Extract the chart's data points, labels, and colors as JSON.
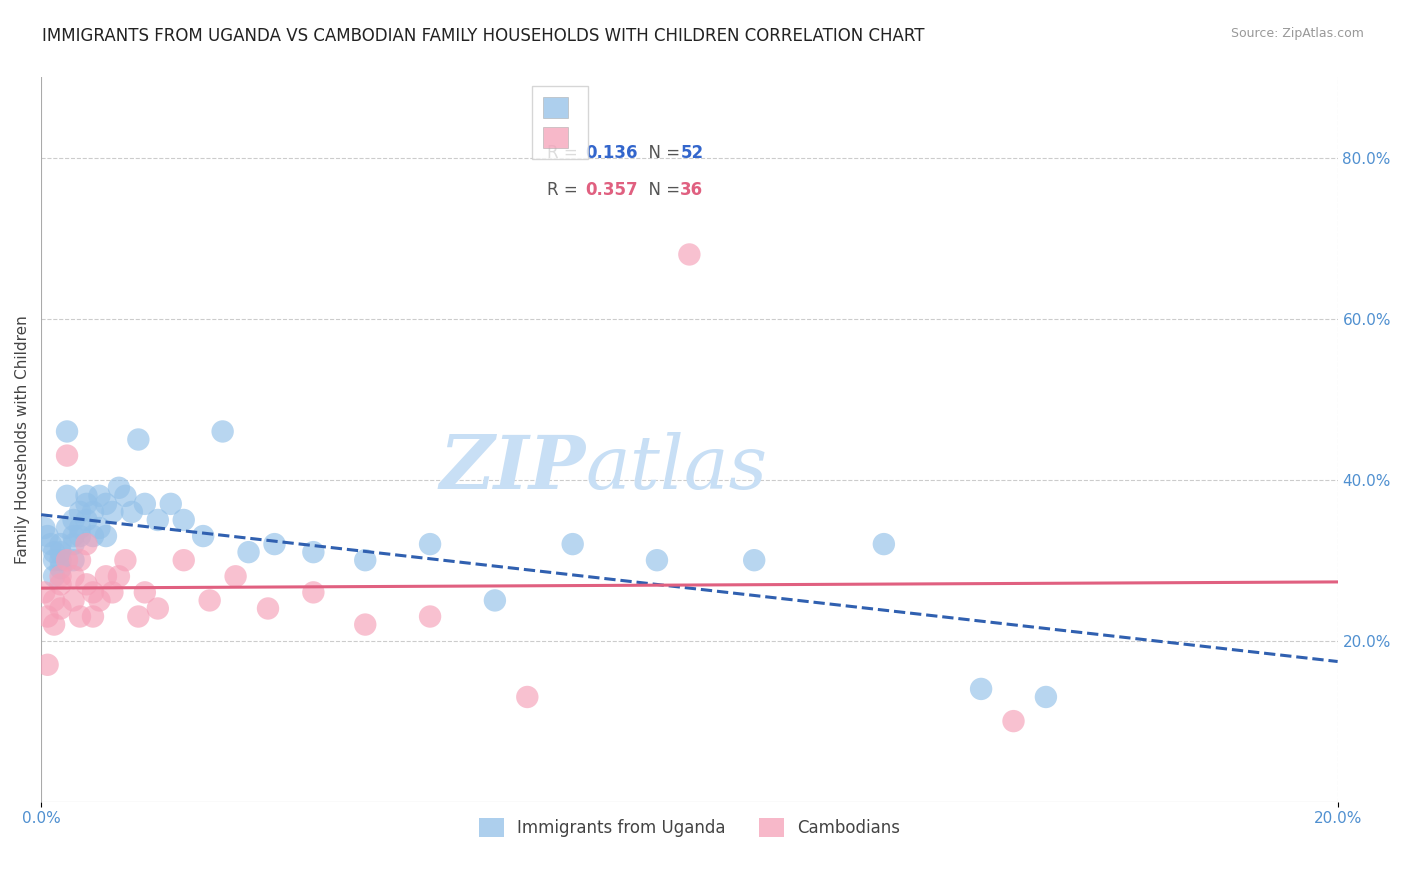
{
  "title": "IMMIGRANTS FROM UGANDA VS CAMBODIAN FAMILY HOUSEHOLDS WITH CHILDREN CORRELATION CHART",
  "source": "Source: ZipAtlas.com",
  "ylabel": "Family Households with Children",
  "ytick_labels": [
    "80.0%",
    "60.0%",
    "40.0%",
    "20.0%"
  ],
  "ytick_values": [
    0.8,
    0.6,
    0.4,
    0.2
  ],
  "xlim": [
    0.0,
    0.2
  ],
  "ylim": [
    0.0,
    0.9
  ],
  "legend_bottom": [
    "Immigrants from Uganda",
    "Cambodians"
  ],
  "uganda_color": "#92c0e8",
  "cambodian_color": "#f5a0b8",
  "uganda_line_color": "#3060b0",
  "cambodian_line_color": "#e06080",
  "background_color": "#ffffff",
  "watermark_zip": "ZIP",
  "watermark_atlas": "atlas",
  "watermark_color_zip": "#c8dff5",
  "watermark_color_atlas": "#c8dff5",
  "legend_R1": "R = ",
  "legend_V1": "0.136",
  "legend_N1_label": "N = ",
  "legend_V1N": "52",
  "legend_R2": "R = ",
  "legend_V2": "0.357",
  "legend_N2_label": "N = ",
  "legend_V2N": "36",
  "uganda_scatter_x": [
    0.0005,
    0.001,
    0.0015,
    0.002,
    0.002,
    0.002,
    0.003,
    0.003,
    0.003,
    0.003,
    0.004,
    0.004,
    0.004,
    0.005,
    0.005,
    0.005,
    0.005,
    0.006,
    0.006,
    0.006,
    0.007,
    0.007,
    0.007,
    0.008,
    0.008,
    0.009,
    0.009,
    0.01,
    0.01,
    0.011,
    0.012,
    0.013,
    0.014,
    0.015,
    0.016,
    0.018,
    0.02,
    0.022,
    0.025,
    0.028,
    0.032,
    0.036,
    0.042,
    0.05,
    0.06,
    0.07,
    0.082,
    0.095,
    0.11,
    0.13,
    0.145,
    0.155
  ],
  "uganda_scatter_y": [
    0.34,
    0.33,
    0.32,
    0.3,
    0.28,
    0.31,
    0.3,
    0.29,
    0.32,
    0.31,
    0.46,
    0.38,
    0.34,
    0.33,
    0.35,
    0.32,
    0.3,
    0.36,
    0.34,
    0.33,
    0.38,
    0.37,
    0.35,
    0.36,
    0.33,
    0.38,
    0.34,
    0.37,
    0.33,
    0.36,
    0.39,
    0.38,
    0.36,
    0.45,
    0.37,
    0.35,
    0.37,
    0.35,
    0.33,
    0.46,
    0.31,
    0.32,
    0.31,
    0.3,
    0.32,
    0.25,
    0.32,
    0.3,
    0.3,
    0.32,
    0.14,
    0.13
  ],
  "cambodian_scatter_x": [
    0.0005,
    0.001,
    0.001,
    0.002,
    0.002,
    0.003,
    0.003,
    0.003,
    0.004,
    0.004,
    0.005,
    0.005,
    0.006,
    0.006,
    0.007,
    0.007,
    0.008,
    0.008,
    0.009,
    0.01,
    0.011,
    0.012,
    0.013,
    0.015,
    0.016,
    0.018,
    0.022,
    0.026,
    0.03,
    0.035,
    0.042,
    0.05,
    0.06,
    0.075,
    0.1,
    0.15
  ],
  "cambodian_scatter_y": [
    0.26,
    0.23,
    0.17,
    0.25,
    0.22,
    0.27,
    0.28,
    0.24,
    0.43,
    0.3,
    0.28,
    0.25,
    0.3,
    0.23,
    0.32,
    0.27,
    0.26,
    0.23,
    0.25,
    0.28,
    0.26,
    0.28,
    0.3,
    0.23,
    0.26,
    0.24,
    0.3,
    0.25,
    0.28,
    0.24,
    0.26,
    0.22,
    0.23,
    0.13,
    0.68,
    0.1
  ],
  "title_fontsize": 12,
  "axis_label_fontsize": 11,
  "tick_fontsize": 11
}
